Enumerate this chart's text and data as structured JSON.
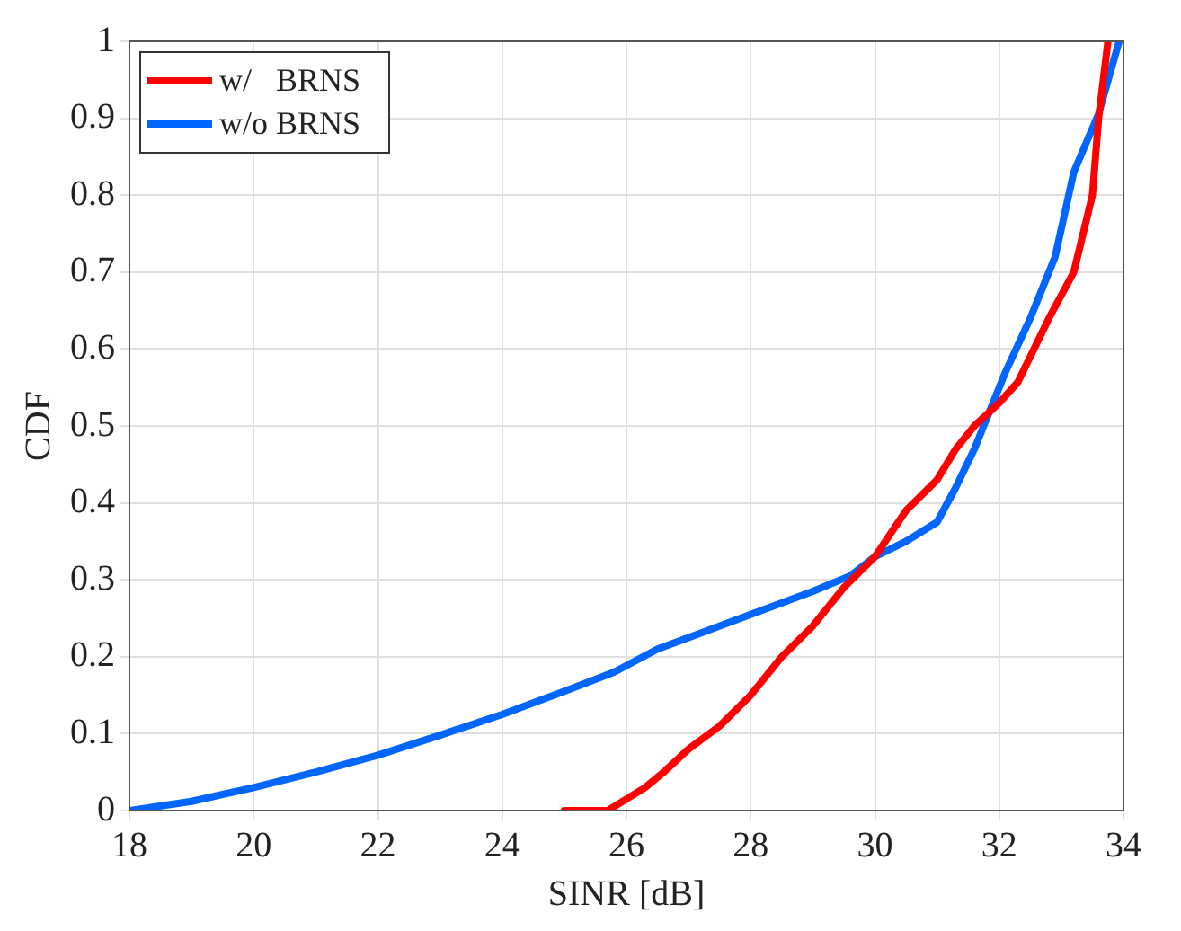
{
  "chart_data": {
    "type": "line",
    "xlabel": "SINR [dB]",
    "ylabel": "CDF",
    "xlim": [
      18,
      34
    ],
    "xticks": [
      18,
      20,
      22,
      24,
      26,
      28,
      30,
      32,
      34
    ],
    "ylim": [
      0,
      1
    ],
    "yticks": [
      0,
      0.1,
      0.2,
      0.3,
      0.4,
      0.5,
      0.6,
      0.7,
      0.8,
      0.9,
      1
    ],
    "grid": true,
    "legend": "top left",
    "marker": "none",
    "line_style": "solid",
    "series": [
      {
        "name": "w/   BRNS",
        "color": "#ff0000",
        "x": [
          25,
          25.7,
          25.9,
          26.3,
          26.6,
          27,
          27.5,
          28,
          28.5,
          29,
          29.5,
          30,
          30.5,
          31,
          31.3,
          31.6,
          32,
          32.3,
          32.8,
          33.2,
          33.5,
          33.6,
          33.75
        ],
        "values": [
          0,
          0,
          0.01,
          0.03,
          0.05,
          0.08,
          0.11,
          0.15,
          0.2,
          0.24,
          0.29,
          0.33,
          0.39,
          0.43,
          0.47,
          0.5,
          0.53,
          0.557,
          0.64,
          0.7,
          0.8,
          0.9,
          1
        ]
      },
      {
        "name": "w/o BRNS",
        "color": "#0066ff",
        "x": [
          18,
          19,
          20,
          21,
          22,
          23,
          24,
          25,
          25.8,
          26.5,
          27,
          28,
          29,
          29.6,
          30,
          30.5,
          31,
          31.3,
          31.6,
          32.1,
          32.5,
          32.9,
          33.2,
          33.6,
          33.93
        ],
        "values": [
          0,
          0.012,
          0.03,
          0.05,
          0.072,
          0.098,
          0.125,
          0.155,
          0.18,
          0.21,
          0.225,
          0.255,
          0.285,
          0.305,
          0.33,
          0.35,
          0.375,
          0.42,
          0.47,
          0.57,
          0.64,
          0.72,
          0.83,
          0.906,
          1
        ]
      }
    ]
  }
}
